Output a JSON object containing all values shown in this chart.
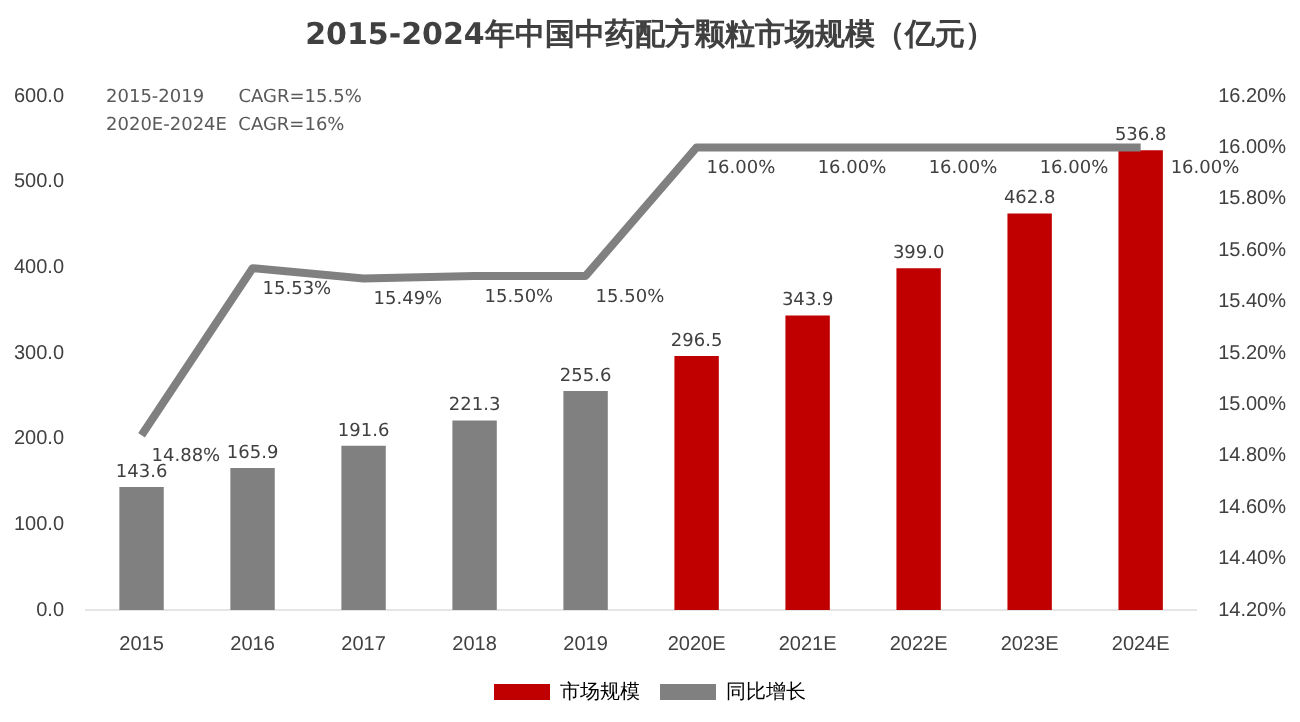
{
  "chart_data": {
    "type": "bar",
    "title": "2015-2024年中国中药配方颗粒市场规模（亿元）",
    "categories": [
      "2015",
      "2016",
      "2017",
      "2018",
      "2019",
      "2020E",
      "2021E",
      "2022E",
      "2023E",
      "2024E"
    ],
    "series": [
      {
        "name": "市场规模",
        "color": "#c00000",
        "colors": [
          "#808080",
          "#808080",
          "#808080",
          "#808080",
          "#808080",
          "#c00000",
          "#c00000",
          "#c00000",
          "#c00000",
          "#c00000"
        ],
        "values": [
          143.6,
          165.9,
          191.6,
          221.3,
          255.6,
          296.5,
          343.9,
          399.0,
          462.8,
          536.8
        ],
        "value_labels": [
          "143.6",
          "165.9",
          "191.6",
          "221.3",
          "255.6",
          "296.5",
          "343.9",
          "399.0",
          "462.8",
          "536.8"
        ]
      },
      {
        "name": "同比增长",
        "type": "line",
        "axis": "y2",
        "color": "#808080",
        "values": [
          14.88,
          15.53,
          15.49,
          15.5,
          15.5,
          16.0,
          16.0,
          16.0,
          16.0,
          16.0
        ],
        "value_labels": [
          "14.88%",
          "15.53%",
          "15.49%",
          "15.50%",
          "15.50%",
          "16.00%",
          "16.00%",
          "16.00%",
          "16.00%",
          "16.00%"
        ]
      }
    ],
    "ylim": [
      0,
      600
    ],
    "yticks": [
      {
        "value": 0,
        "label": "0.0"
      },
      {
        "value": 100,
        "label": "100.0"
      },
      {
        "value": 200,
        "label": "200.0"
      },
      {
        "value": 300,
        "label": "300.0"
      },
      {
        "value": 400,
        "label": "400.0"
      },
      {
        "value": 500,
        "label": "500.0"
      },
      {
        "value": 600,
        "label": "600.0"
      }
    ],
    "y2lim": [
      14.2,
      16.2
    ],
    "y2ticks": [
      {
        "value": 14.2,
        "label": "14.20%"
      },
      {
        "value": 14.4,
        "label": "14.40%"
      },
      {
        "value": 14.6,
        "label": "14.60%"
      },
      {
        "value": 14.8,
        "label": "14.80%"
      },
      {
        "value": 15.0,
        "label": "15.00%"
      },
      {
        "value": 15.2,
        "label": "15.20%"
      },
      {
        "value": 15.4,
        "label": "15.40%"
      },
      {
        "value": 15.6,
        "label": "15.60%"
      },
      {
        "value": 15.8,
        "label": "15.80%"
      },
      {
        "value": 16.0,
        "label": "16.00%"
      },
      {
        "value": 16.2,
        "label": "16.20%"
      }
    ],
    "annotations": [
      "2015-2019      CAGR=15.5%",
      "2020E-2024E  CAGR=16%"
    ],
    "legend": "bottom",
    "grid": false,
    "marker": "none",
    "line_style": "solid"
  }
}
